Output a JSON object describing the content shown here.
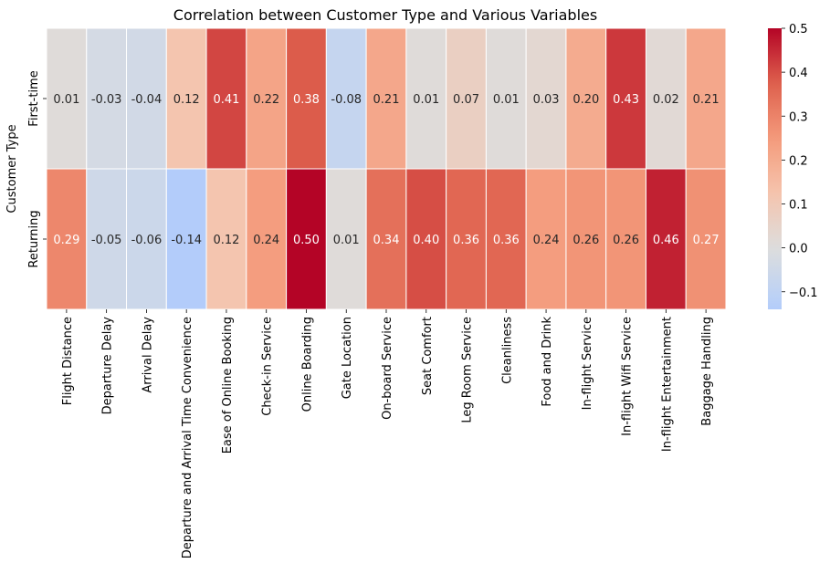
{
  "chart_data": {
    "type": "heatmap",
    "title": "Correlation between Customer Type and Various Variables",
    "ylabel": "Customer Type",
    "xlabel": "",
    "rows": [
      "First-time",
      "Returning"
    ],
    "columns": [
      "Flight Distance",
      "Departure Delay",
      "Arrival Delay",
      "Departure and Arrival Time Convenience",
      "Ease of Online Booking",
      "Check-in Service",
      "Online Boarding",
      "Gate Location",
      "On-board Service",
      "Seat Comfort",
      "Leg Room Service",
      "Cleanliness",
      "Food and Drink",
      "In-flight Service",
      "In-flight Wifi Service",
      "In-flight Entertainment",
      "Baggage Handling"
    ],
    "values": [
      [
        0.01,
        -0.03,
        -0.04,
        0.12,
        0.41,
        0.22,
        0.38,
        -0.08,
        0.21,
        0.01,
        0.07,
        0.01,
        0.03,
        0.2,
        0.43,
        0.02,
        0.21
      ],
      [
        0.29,
        -0.05,
        -0.06,
        -0.14,
        0.12,
        0.24,
        0.5,
        0.01,
        0.34,
        0.4,
        0.36,
        0.36,
        0.24,
        0.26,
        0.26,
        0.46,
        0.27
      ]
    ],
    "value_labels": [
      [
        "0.01",
        "-0.03",
        "-0.04",
        "0.12",
        "0.41",
        "0.22",
        "0.38",
        "-0.08",
        "0.21",
        "0.01",
        "0.07",
        "0.01",
        "0.03",
        "0.20",
        "0.43",
        "0.02",
        "0.21"
      ],
      [
        "0.29",
        "-0.05",
        "-0.06",
        "-0.14",
        "0.12",
        "0.24",
        "0.50",
        "0.01",
        "0.34",
        "0.40",
        "0.36",
        "0.36",
        "0.24",
        "0.26",
        "0.26",
        "0.46",
        "0.27"
      ]
    ],
    "colormap": "coolwarm",
    "center": 0.0,
    "vmin": -0.14,
    "vmax": 0.5,
    "colorbar_ticks": [
      0.5,
      0.4,
      0.3,
      0.2,
      0.1,
      0.0,
      -0.1
    ],
    "colorbar_tick_labels": [
      "0.5",
      "0.4",
      "0.3",
      "0.2",
      "0.1",
      "0.0",
      "−0.1"
    ],
    "grid": false,
    "annotations": true
  }
}
